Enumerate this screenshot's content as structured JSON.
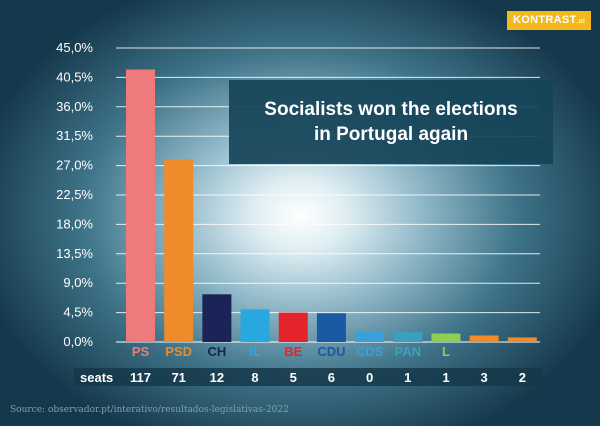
{
  "brand": {
    "name": "KONTRAST",
    "tld": ".at",
    "color": "#f4b81c"
  },
  "headline": {
    "line1": "Socialists won the elections",
    "line2": "in Portugal again"
  },
  "source": "Source: observador.pt/interativo/resultados-legislativas-2022",
  "chart_data": {
    "type": "bar",
    "title": "Socialists won the elections in Portugal again",
    "ylim": [
      0,
      45
    ],
    "yticks": [
      "0,0%",
      "4,5%",
      "9,0%",
      "13,5%",
      "18,0%",
      "22,5%",
      "27,0%",
      "31,5%",
      "36,0%",
      "40,5%",
      "45,0%"
    ],
    "grid": true,
    "categories": [
      "PS",
      "PSD",
      "CH",
      "IL",
      "BE",
      "CDU",
      "CDS",
      "PAN",
      "L",
      "",
      ""
    ],
    "values": [
      41.7,
      28.0,
      7.3,
      5.0,
      4.5,
      4.4,
      1.6,
      1.5,
      1.3,
      1.0,
      0.7
    ],
    "colors": [
      "#ef7a7c",
      "#ef8b2b",
      "#1c2457",
      "#29a8e0",
      "#e4242c",
      "#1a5aa2",
      "#3aa0dc",
      "#3aa0c0",
      "#8fcd55",
      "#ef8b2b",
      "#ef8b2b"
    ],
    "seats_label": "seats",
    "seats": [
      "117",
      "71",
      "12",
      "8",
      "5",
      "6",
      "0",
      "1",
      "1",
      "3",
      "2"
    ]
  }
}
